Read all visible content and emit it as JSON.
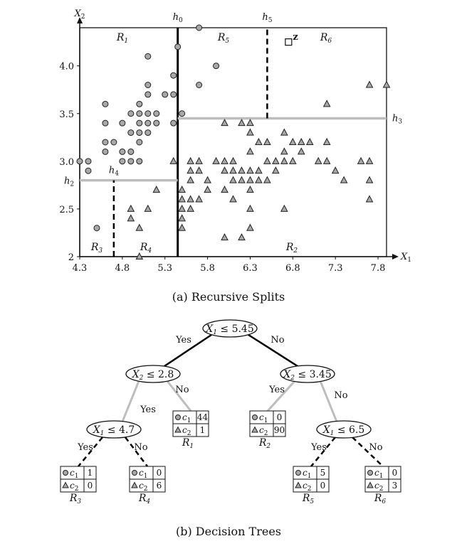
{
  "chart_data": {
    "type": "scatter",
    "title": "",
    "xlabel": "X1",
    "ylabel": "X2",
    "xlim": [
      4.3,
      7.9
    ],
    "ylim": [
      2.0,
      4.4
    ],
    "x_ticks": [
      "4.3",
      "4.8",
      "5.3",
      "5.8",
      "6.3",
      "6.8",
      "7.3",
      "7.8"
    ],
    "y_ticks": [
      "2",
      "2.5",
      "3.0",
      "3.5",
      "4.0"
    ],
    "series": [
      {
        "marker": "circle",
        "color": "#a8a8a8",
        "points": [
          [
            5.7,
            4.4
          ],
          [
            5.1,
            4.1
          ],
          [
            5.45,
            4.2
          ],
          [
            5.9,
            4.0
          ],
          [
            5.4,
            3.9
          ],
          [
            5.1,
            3.8
          ],
          [
            5.7,
            3.8
          ],
          [
            5.1,
            3.7
          ],
          [
            5.3,
            3.7
          ],
          [
            5.4,
            3.7
          ],
          [
            4.6,
            3.6
          ],
          [
            5.0,
            3.6
          ],
          [
            4.9,
            3.5
          ],
          [
            5.0,
            3.5
          ],
          [
            5.1,
            3.5
          ],
          [
            5.2,
            3.5
          ],
          [
            5.5,
            3.5
          ],
          [
            4.6,
            3.4
          ],
          [
            4.8,
            3.4
          ],
          [
            5.0,
            3.4
          ],
          [
            5.1,
            3.4
          ],
          [
            5.2,
            3.4
          ],
          [
            5.4,
            3.4
          ],
          [
            4.9,
            3.3
          ],
          [
            5.0,
            3.3
          ],
          [
            5.1,
            3.3
          ],
          [
            4.6,
            3.2
          ],
          [
            4.7,
            3.2
          ],
          [
            5.0,
            3.2
          ],
          [
            4.6,
            3.1
          ],
          [
            4.8,
            3.1
          ],
          [
            4.9,
            3.1
          ],
          [
            4.4,
            3.0
          ],
          [
            4.8,
            3.0
          ],
          [
            4.9,
            3.0
          ],
          [
            5.0,
            3.0
          ],
          [
            4.3,
            3.0
          ],
          [
            4.4,
            2.9
          ],
          [
            4.5,
            2.3
          ]
        ]
      },
      {
        "marker": "triangle",
        "color": "#a8a8a8",
        "points": [
          [
            7.7,
            3.8
          ],
          [
            7.9,
            3.8
          ],
          [
            7.2,
            3.6
          ],
          [
            6.0,
            3.4
          ],
          [
            6.2,
            3.4
          ],
          [
            6.3,
            3.4
          ],
          [
            6.3,
            3.3
          ],
          [
            6.7,
            3.3
          ],
          [
            6.4,
            3.2
          ],
          [
            6.5,
            3.2
          ],
          [
            6.8,
            3.2
          ],
          [
            6.9,
            3.2
          ],
          [
            7.0,
            3.2
          ],
          [
            7.2,
            3.2
          ],
          [
            6.3,
            3.1
          ],
          [
            6.7,
            3.1
          ],
          [
            6.9,
            3.1
          ],
          [
            5.4,
            3.0
          ],
          [
            5.6,
            3.0
          ],
          [
            5.7,
            3.0
          ],
          [
            5.9,
            3.0
          ],
          [
            6.0,
            3.0
          ],
          [
            6.1,
            3.0
          ],
          [
            6.5,
            3.0
          ],
          [
            6.6,
            3.0
          ],
          [
            6.7,
            3.0
          ],
          [
            6.8,
            3.0
          ],
          [
            7.1,
            3.0
          ],
          [
            7.2,
            3.0
          ],
          [
            7.6,
            3.0
          ],
          [
            7.7,
            3.0
          ],
          [
            5.6,
            2.9
          ],
          [
            5.7,
            2.9
          ],
          [
            6.0,
            2.9
          ],
          [
            6.1,
            2.9
          ],
          [
            6.2,
            2.9
          ],
          [
            6.3,
            2.9
          ],
          [
            6.4,
            2.9
          ],
          [
            6.6,
            2.9
          ],
          [
            7.3,
            2.9
          ],
          [
            7.4,
            2.8
          ],
          [
            5.6,
            2.8
          ],
          [
            5.8,
            2.8
          ],
          [
            6.1,
            2.8
          ],
          [
            6.2,
            2.8
          ],
          [
            6.3,
            2.8
          ],
          [
            6.4,
            2.8
          ],
          [
            6.5,
            2.8
          ],
          [
            7.7,
            2.8
          ],
          [
            5.5,
            2.7
          ],
          [
            5.8,
            2.7
          ],
          [
            6.0,
            2.7
          ],
          [
            6.3,
            2.7
          ],
          [
            5.2,
            2.7
          ],
          [
            5.5,
            2.6
          ],
          [
            5.6,
            2.6
          ],
          [
            5.7,
            2.6
          ],
          [
            6.1,
            2.6
          ],
          [
            7.7,
            2.6
          ],
          [
            4.9,
            2.5
          ],
          [
            5.1,
            2.5
          ],
          [
            5.5,
            2.5
          ],
          [
            5.6,
            2.5
          ],
          [
            6.3,
            2.5
          ],
          [
            6.7,
            2.5
          ],
          [
            4.9,
            2.4
          ],
          [
            5.5,
            2.4
          ],
          [
            5.0,
            2.3
          ],
          [
            5.5,
            2.3
          ],
          [
            6.3,
            2.3
          ],
          [
            6.0,
            2.2
          ],
          [
            6.2,
            2.2
          ],
          [
            5.0,
            2.0
          ]
        ]
      }
    ],
    "test_point": {
      "x": 6.75,
      "y": 4.25,
      "label": "z"
    },
    "splits": [
      {
        "name": "h0",
        "label": "h",
        "sub": "0",
        "axis": "x",
        "value": 5.45,
        "style": "solid-black"
      },
      {
        "name": "h2",
        "label": "h",
        "sub": "2",
        "axis": "y",
        "value": 2.8,
        "style": "gray",
        "range": [
          4.3,
          5.45
        ]
      },
      {
        "name": "h3",
        "label": "h",
        "sub": "3",
        "axis": "y",
        "value": 3.45,
        "style": "gray",
        "range": [
          5.45,
          7.9
        ]
      },
      {
        "name": "h4",
        "label": "h",
        "sub": "4",
        "axis": "x",
        "value": 4.7,
        "style": "dashed",
        "range": [
          2.0,
          2.8
        ]
      },
      {
        "name": "h5",
        "label": "h",
        "sub": "5",
        "axis": "x",
        "value": 6.5,
        "style": "dashed",
        "range": [
          3.45,
          4.4
        ]
      }
    ],
    "regions": [
      {
        "id": "R1",
        "letter": "R",
        "sub": "1"
      },
      {
        "id": "R2",
        "letter": "R",
        "sub": "2"
      },
      {
        "id": "R3",
        "letter": "R",
        "sub": "3"
      },
      {
        "id": "R4",
        "letter": "R",
        "sub": "4"
      },
      {
        "id": "R5",
        "letter": "R",
        "sub": "5"
      },
      {
        "id": "R6",
        "letter": "R",
        "sub": "6"
      }
    ]
  },
  "axes": {
    "x_letter": "X",
    "x_sub": "1",
    "y_letter": "X",
    "y_sub": "2"
  },
  "captions": {
    "a": "(a) Recursive Splits",
    "b": "(b) Decision Trees"
  },
  "tree": {
    "edge_yes": "Yes",
    "edge_no": "No",
    "nodes": [
      {
        "id": "root",
        "var": "X",
        "sub": "1",
        "op": "≤",
        "value": "5.45"
      },
      {
        "id": "left",
        "var": "X",
        "sub": "2",
        "op": "≤",
        "value": "2.8"
      },
      {
        "id": "right",
        "var": "X",
        "sub": "2",
        "op": "≤",
        "value": "3.45"
      },
      {
        "id": "ll",
        "var": "X",
        "sub": "1",
        "op": "≤",
        "value": "4.7"
      },
      {
        "id": "rr",
        "var": "X",
        "sub": "1",
        "op": "≤",
        "value": "6.5"
      }
    ],
    "class_labels": [
      {
        "letter": "c",
        "sub": "1"
      },
      {
        "letter": "c",
        "sub": "2"
      }
    ],
    "leaves": [
      {
        "id": "R1",
        "letter": "R",
        "sub": "1",
        "c1": "44",
        "c2": "1"
      },
      {
        "id": "R2",
        "letter": "R",
        "sub": "2",
        "c1": "0",
        "c2": "90"
      },
      {
        "id": "R3",
        "letter": "R",
        "sub": "3",
        "c1": "1",
        "c2": "0"
      },
      {
        "id": "R4",
        "letter": "R",
        "sub": "4",
        "c1": "0",
        "c2": "6"
      },
      {
        "id": "R5",
        "letter": "R",
        "sub": "5",
        "c1": "5",
        "c2": "0"
      },
      {
        "id": "R6",
        "letter": "R",
        "sub": "6",
        "c1": "0",
        "c2": "3"
      }
    ]
  }
}
